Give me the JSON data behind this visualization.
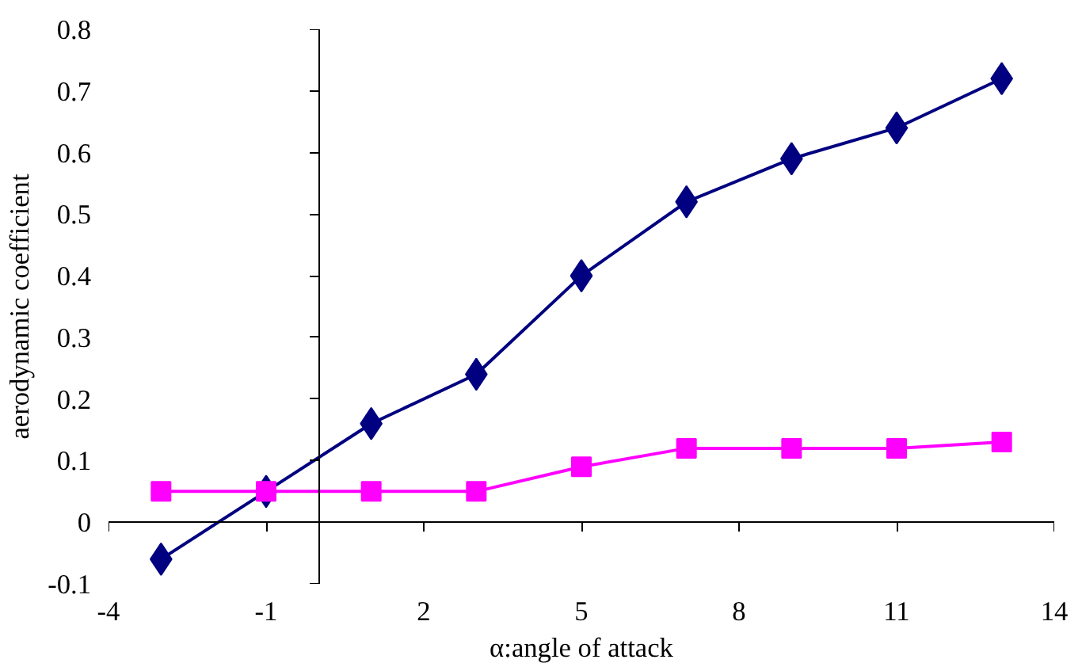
{
  "chart_data": {
    "type": "line",
    "xlabel": "α:angle of attack",
    "ylabel": "aerodynamic coefficient",
    "x": [
      -3,
      -1,
      1,
      3,
      5,
      7,
      9,
      11,
      13
    ],
    "series": [
      {
        "color": "#000080",
        "marker": "diamond",
        "values": [
          -0.06,
          0.05,
          0.16,
          0.24,
          0.4,
          0.52,
          0.59,
          0.64,
          0.72
        ]
      },
      {
        "color": "#ff00ff",
        "marker": "square",
        "values": [
          0.05,
          0.05,
          0.05,
          0.05,
          0.09,
          0.12,
          0.12,
          0.12,
          0.13
        ]
      }
    ],
    "xlim": [
      -4,
      14
    ],
    "xticks": [
      -4,
      -1,
      2,
      5,
      8,
      11,
      14
    ],
    "ylim": [
      -0.1,
      0.8
    ],
    "yticks": [
      {
        "value": -0.1,
        "label": "-0.1"
      },
      0,
      {
        "value": 0.1,
        "label": "0.1"
      },
      {
        "value": 0.2,
        "label": "0.2"
      },
      {
        "value": 0.3,
        "label": "0.3"
      },
      {
        "value": 0.4,
        "label": "0.4"
      },
      {
        "value": 0.5,
        "label": "0.5"
      },
      {
        "value": 0.6,
        "label": "0.6"
      },
      {
        "value": 0.7,
        "label": "0.7"
      },
      {
        "value": 0.8,
        "label": "0.8"
      }
    ],
    "line_style": "solid"
  }
}
